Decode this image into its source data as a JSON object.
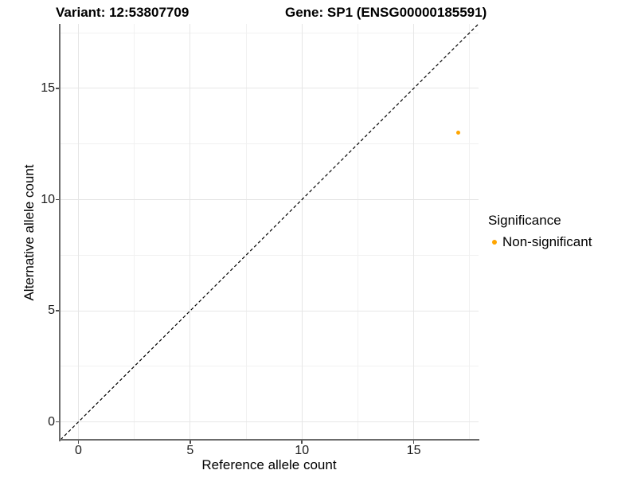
{
  "chart_data": {
    "type": "scatter",
    "title_left": "Variant: 12:53807709",
    "title_right": "Gene: SP1 (ENSG00000185591)",
    "xlabel": "Reference allele count",
    "ylabel": "Alternative allele count",
    "xlim": [
      -0.8,
      17.9
    ],
    "ylim": [
      -0.8,
      17.9
    ],
    "x_ticks": [
      0,
      5,
      10,
      15
    ],
    "y_ticks": [
      0,
      5,
      10,
      15
    ],
    "x_tick_labels": [
      "0",
      "5",
      "10",
      "15"
    ],
    "y_tick_labels": [
      "0",
      "5",
      "10",
      "15"
    ],
    "x_minor_ticks": [
      2.5,
      7.5,
      12.5,
      17.5
    ],
    "y_minor_ticks": [
      2.5,
      7.5,
      12.5,
      17.5
    ],
    "grid": true,
    "legend_position": "right",
    "reference_line": {
      "kind": "identity",
      "slope": 1,
      "intercept": 0,
      "style": "dashed",
      "color": "#000000"
    },
    "series": [
      {
        "name": "Non-significant",
        "color": "#FFA500",
        "points": [
          {
            "x": 17,
            "y": 13
          }
        ]
      }
    ],
    "legend": {
      "title": "Significance",
      "entries": [
        {
          "label": "Non-significant",
          "color": "#FFA500"
        }
      ]
    },
    "colors": {
      "background": "#FFFFFF",
      "grid_major": "#E6E6E6",
      "grid_minor": "#F1F1F1",
      "axis_line": "#6B6B6B",
      "tick_mark": "#4D4D4D",
      "tick_text": "#1A1A1A",
      "title_text": "#000000"
    }
  }
}
